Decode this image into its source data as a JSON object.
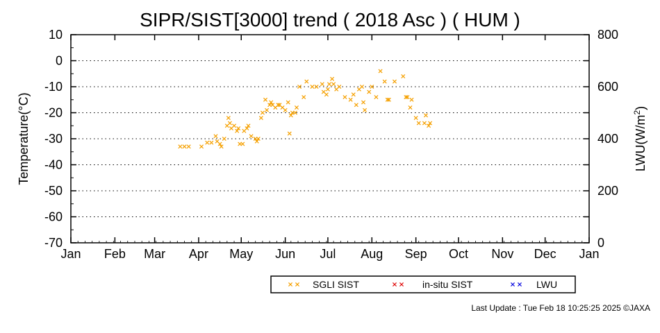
{
  "chart_data": {
    "type": "scatter",
    "title": "SIPR/SIST[3000] trend ( 2018 Asc ) ( HUM )",
    "ylabel": "Temperature(°C)",
    "y2label_main": "LWU(W/m",
    "y2label_sup": "2",
    "y2label_close": ")",
    "ylim": [
      -70,
      10
    ],
    "yticks": [
      "10",
      "0",
      "-10",
      "-20",
      "-30",
      "-40",
      "-50",
      "-60",
      "-70"
    ],
    "y2lim": [
      0,
      800
    ],
    "y2ticks": [
      "800",
      "600",
      "400",
      "200",
      "0"
    ],
    "xlim": [
      0,
      365
    ],
    "xticks": [
      "Jan",
      "Feb",
      "Mar",
      "Apr",
      "May",
      "Jun",
      "Jul",
      "Aug",
      "Sep",
      "Oct",
      "Nov",
      "Dec",
      "Jan"
    ],
    "grid": "horizontal dotted",
    "series": [
      {
        "name": "SGLI SIST",
        "color": "#f5a000",
        "marker": "x",
        "points": [
          [
            77,
            -33
          ],
          [
            80,
            -33
          ],
          [
            83,
            -33
          ],
          [
            92,
            -33
          ],
          [
            96,
            -31.5
          ],
          [
            99,
            -31.5
          ],
          [
            102,
            -29
          ],
          [
            103,
            -31
          ],
          [
            105,
            -32
          ],
          [
            106,
            -33
          ],
          [
            108,
            -30
          ],
          [
            110,
            -25
          ],
          [
            111,
            -22
          ],
          [
            112,
            -24
          ],
          [
            113,
            -26
          ],
          [
            115,
            -25
          ],
          [
            117,
            -27
          ],
          [
            118,
            -26
          ],
          [
            119,
            -32
          ],
          [
            121,
            -32
          ],
          [
            122,
            -27
          ],
          [
            124,
            -26
          ],
          [
            125,
            -25
          ],
          [
            127,
            -29
          ],
          [
            130,
            -30
          ],
          [
            131,
            -31
          ],
          [
            132,
            -30
          ],
          [
            134,
            -22
          ],
          [
            135,
            -20
          ],
          [
            137,
            -15
          ],
          [
            138,
            -19
          ],
          [
            140,
            -17
          ],
          [
            141,
            -16
          ],
          [
            142,
            -17
          ],
          [
            144,
            -18
          ],
          [
            146,
            -17
          ],
          [
            147,
            -17
          ],
          [
            149,
            -18
          ],
          [
            151,
            -19
          ],
          [
            153,
            -16
          ],
          [
            154,
            -28
          ],
          [
            155,
            -21
          ],
          [
            156,
            -20
          ],
          [
            158,
            -20
          ],
          [
            159,
            -18
          ],
          [
            161,
            -10
          ],
          [
            164,
            -14
          ],
          [
            166,
            -8
          ],
          [
            170,
            -10
          ],
          [
            173,
            -10
          ],
          [
            177,
            -9
          ],
          [
            178,
            -12
          ],
          [
            180,
            -13
          ],
          [
            181,
            -11
          ],
          [
            182,
            -9
          ],
          [
            184,
            -7
          ],
          [
            185,
            -9
          ],
          [
            187,
            -11
          ],
          [
            189,
            -10
          ],
          [
            193,
            -14
          ],
          [
            197,
            -15
          ],
          [
            199,
            -13
          ],
          [
            201,
            -17
          ],
          [
            203,
            -11
          ],
          [
            205,
            -10
          ],
          [
            206,
            -16
          ],
          [
            207,
            -19
          ],
          [
            210,
            -12
          ],
          [
            212,
            -10
          ],
          [
            215,
            -14
          ],
          [
            218,
            -4
          ],
          [
            221,
            -8
          ],
          [
            223,
            -15
          ],
          [
            224,
            -15
          ],
          [
            228,
            -8
          ],
          [
            234,
            -6
          ],
          [
            236,
            -14
          ],
          [
            237,
            -14
          ],
          [
            239,
            -18
          ],
          [
            240,
            -15
          ],
          [
            243,
            -22
          ],
          [
            245,
            -24
          ],
          [
            249,
            -24
          ],
          [
            250,
            -21
          ],
          [
            252,
            -25
          ],
          [
            253,
            -24
          ]
        ]
      },
      {
        "name": "in-situ SIST",
        "color": "#e01010",
        "marker": "x",
        "points": []
      },
      {
        "name": "LWU",
        "color": "#1010e0",
        "marker": "x",
        "points": []
      }
    ]
  },
  "footer": "Last Update : Tue Feb 18 10:25:25 2025  ©JAXA"
}
